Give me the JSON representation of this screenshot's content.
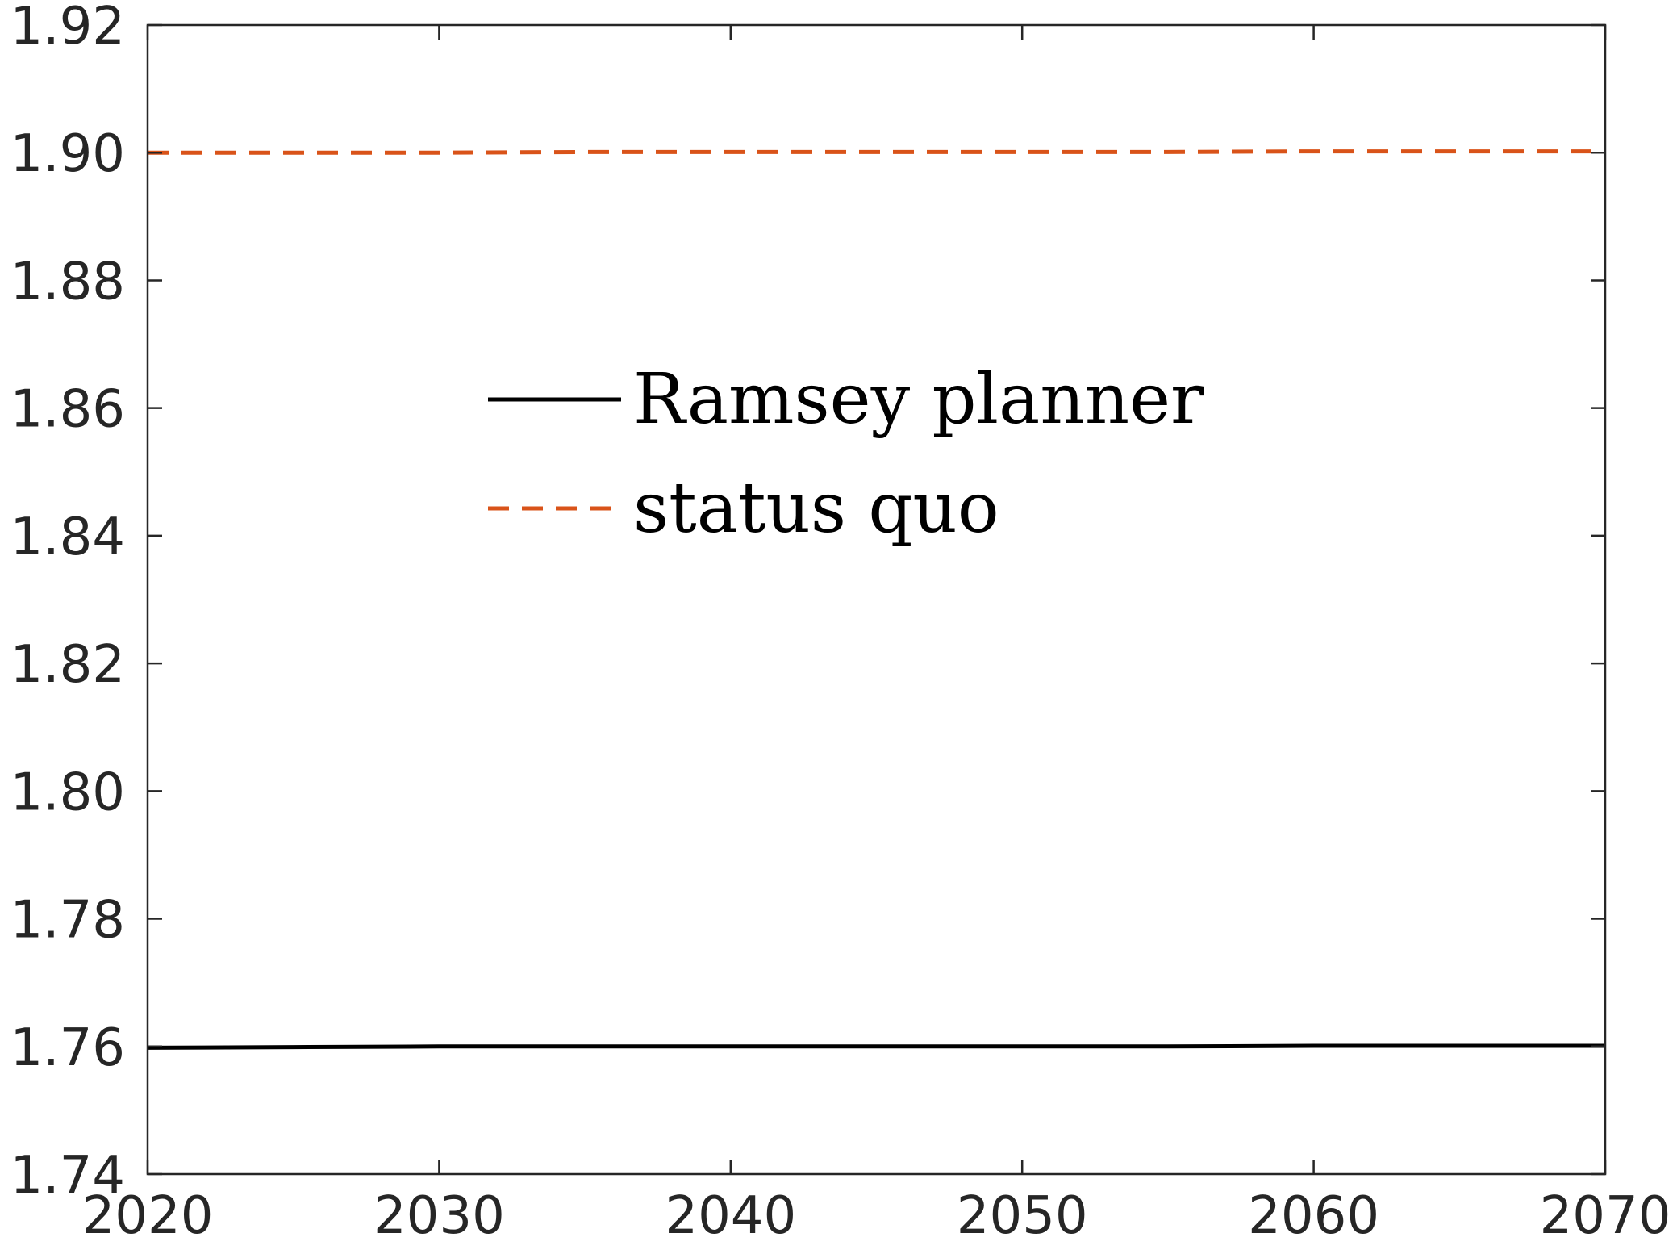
{
  "chart_data": {
    "type": "line",
    "title": "",
    "xlabel": "",
    "ylabel": "",
    "xlim": [
      2020,
      2070
    ],
    "ylim": [
      1.74,
      1.92
    ],
    "x_ticks": [
      2020,
      2030,
      2040,
      2050,
      2060,
      2070
    ],
    "y_ticks": [
      1.74,
      1.76,
      1.78,
      1.8,
      1.82,
      1.84,
      1.86,
      1.88,
      1.9,
      1.92
    ],
    "x_tick_labels": [
      "2020",
      "2030",
      "2040",
      "2050",
      "2060",
      "2070"
    ],
    "y_tick_labels": [
      "1.74",
      "1.76",
      "1.78",
      "1.80",
      "1.82",
      "1.84",
      "1.86",
      "1.88",
      "1.90",
      "1.92"
    ],
    "grid": false,
    "legend_position": "upper-center",
    "series": [
      {
        "name": "Ramsey planner",
        "color": "#000000",
        "style": "solid",
        "x": [
          2020,
          2025,
          2030,
          2035,
          2040,
          2045,
          2050,
          2055,
          2060,
          2065,
          2070
        ],
        "y": [
          1.7598,
          1.7599,
          1.76,
          1.76,
          1.76,
          1.76,
          1.76,
          1.76,
          1.7601,
          1.7601,
          1.7601
        ]
      },
      {
        "name": "status quo",
        "color": "#D95319",
        "style": "dashed",
        "x": [
          2020,
          2025,
          2030,
          2035,
          2040,
          2045,
          2050,
          2055,
          2060,
          2065,
          2070
        ],
        "y": [
          1.9,
          1.9,
          1.9,
          1.9001,
          1.9001,
          1.9001,
          1.9001,
          1.9001,
          1.9002,
          1.9002,
          1.9002
        ]
      }
    ]
  }
}
